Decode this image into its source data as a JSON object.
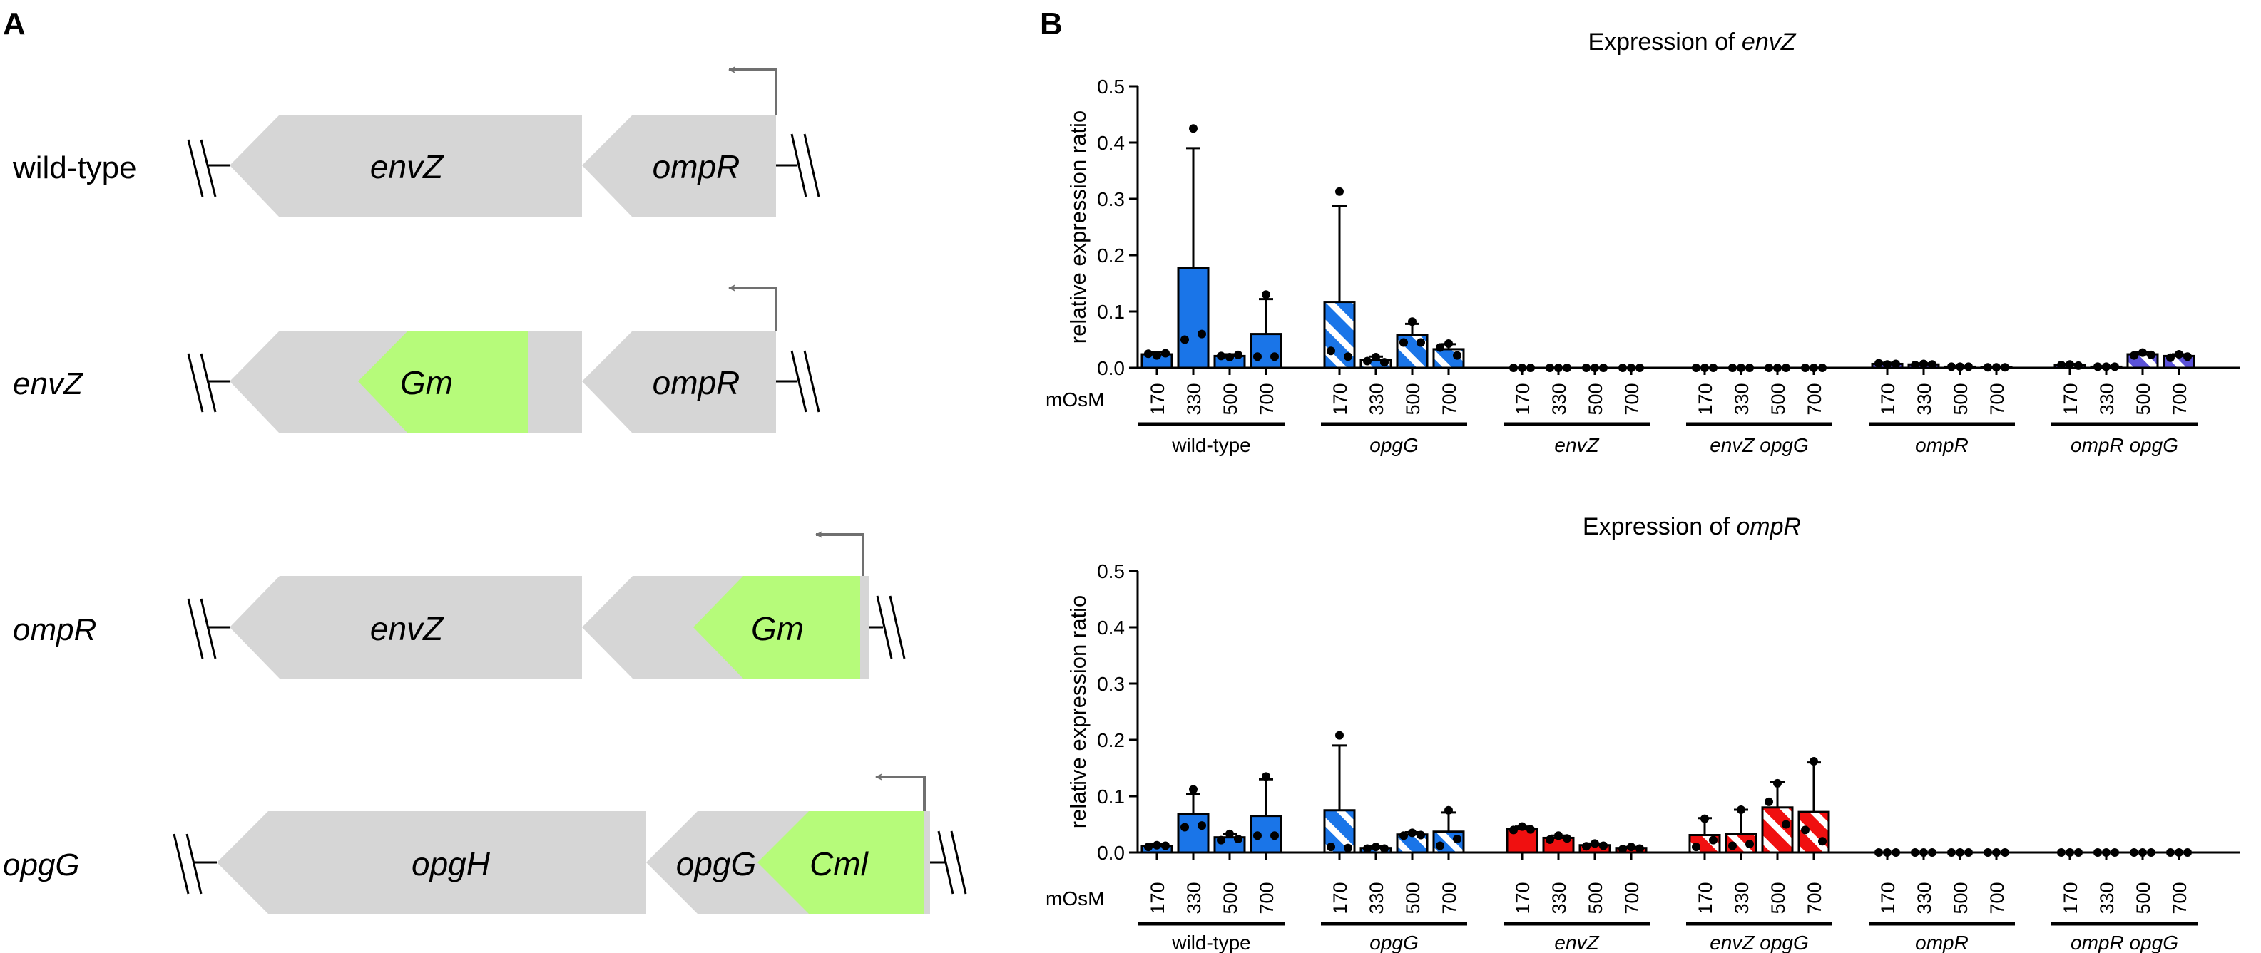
{
  "panel_a": {
    "label": "A",
    "rows": [
      {
        "label": "wild-type",
        "genes": [
          {
            "name": "envZ",
            "color": "gray"
          },
          {
            "name": "ompR",
            "color": "gray"
          }
        ]
      },
      {
        "label": "envZ",
        "genes": [
          {
            "name": "Gm",
            "color": "green"
          },
          {
            "name": "ompR",
            "color": "gray"
          }
        ]
      },
      {
        "label": "ompR",
        "genes": [
          {
            "name": "envZ",
            "color": "gray"
          },
          {
            "name": "Gm",
            "color": "green"
          }
        ]
      },
      {
        "label": "opgG",
        "genes": [
          {
            "name": "opgH",
            "color": "gray"
          },
          {
            "name": "opgG",
            "color": "gray"
          },
          {
            "name": "Cml",
            "color": "green"
          }
        ]
      }
    ]
  },
  "panel_b": {
    "label": "B"
  },
  "colors": {
    "gene_gray": "#d6d6d6",
    "gene_green": "#b6fb7a",
    "blue": "#1a75e8",
    "red": "#f01010",
    "purple": "#5b52d9",
    "black": "#000000"
  },
  "chart_data": [
    {
      "type": "bar",
      "title_prefix": "Expression of ",
      "title_gene": "envZ",
      "ylabel": "relative expression ratio",
      "ylim": [
        0,
        0.5
      ],
      "yticks": [
        "0.0",
        "0.1",
        "0.2",
        "0.3",
        "0.4",
        "0.5"
      ],
      "osm_label": "mOsM",
      "groups": [
        {
          "name": "wild-type",
          "italic": false,
          "bars": [
            {
              "osm": "170",
              "value": 0.024,
              "err": 0.004,
              "fill": "blue",
              "pattern": "solid",
              "points": [
                0.022,
                0.025,
                0.026
              ]
            },
            {
              "osm": "330",
              "value": 0.177,
              "err": 0.213,
              "fill": "blue",
              "pattern": "solid",
              "points": [
                0.425,
                0.05,
                0.06
              ]
            },
            {
              "osm": "500",
              "value": 0.021,
              "err": 0.003,
              "fill": "blue",
              "pattern": "solid",
              "points": [
                0.019,
                0.021,
                0.023
              ]
            },
            {
              "osm": "700",
              "value": 0.06,
              "err": 0.062,
              "fill": "blue",
              "pattern": "solid",
              "points": [
                0.13,
                0.02,
                0.02
              ]
            }
          ]
        },
        {
          "name": "opgG",
          "italic": true,
          "bars": [
            {
              "osm": "170",
              "value": 0.117,
              "err": 0.17,
              "fill": "blue",
              "pattern": "striped",
              "points": [
                0.313,
                0.03,
                0.02
              ]
            },
            {
              "osm": "330",
              "value": 0.014,
              "err": 0.006,
              "fill": "blue",
              "pattern": "striped",
              "points": [
                0.019,
                0.012,
                0.01
              ]
            },
            {
              "osm": "500",
              "value": 0.058,
              "err": 0.02,
              "fill": "blue",
              "pattern": "striped",
              "points": [
                0.082,
                0.045,
                0.045
              ]
            },
            {
              "osm": "700",
              "value": 0.033,
              "err": 0.009,
              "fill": "blue",
              "pattern": "striped",
              "points": [
                0.043,
                0.036,
                0.022
              ]
            }
          ]
        },
        {
          "name": "envZ",
          "italic": true,
          "bars": [
            {
              "osm": "170",
              "value": 0,
              "err": 0,
              "fill": "red",
              "pattern": "solid",
              "points": [
                0,
                0,
                0
              ]
            },
            {
              "osm": "330",
              "value": 0,
              "err": 0,
              "fill": "red",
              "pattern": "solid",
              "points": [
                0,
                0,
                0
              ]
            },
            {
              "osm": "500",
              "value": 0,
              "err": 0,
              "fill": "red",
              "pattern": "solid",
              "points": [
                0,
                0,
                0
              ]
            },
            {
              "osm": "700",
              "value": 0,
              "err": 0,
              "fill": "red",
              "pattern": "solid",
              "points": [
                0,
                0,
                0
              ]
            }
          ]
        },
        {
          "name": "envZ opgG",
          "italic": true,
          "bars": [
            {
              "osm": "170",
              "value": 0,
              "err": 0,
              "fill": "red",
              "pattern": "striped",
              "points": [
                0,
                0,
                0
              ]
            },
            {
              "osm": "330",
              "value": 0,
              "err": 0,
              "fill": "red",
              "pattern": "striped",
              "points": [
                0,
                0,
                0
              ]
            },
            {
              "osm": "500",
              "value": 0,
              "err": 0,
              "fill": "red",
              "pattern": "striped",
              "points": [
                0,
                0,
                0
              ]
            },
            {
              "osm": "700",
              "value": 0,
              "err": 0,
              "fill": "red",
              "pattern": "striped",
              "points": [
                0,
                0,
                0
              ]
            }
          ]
        },
        {
          "name": "ompR",
          "italic": true,
          "bars": [
            {
              "osm": "170",
              "value": 0.007,
              "err": 0.002,
              "fill": "purple",
              "pattern": "solid",
              "points": [
                0.006,
                0.008,
                0.007
              ]
            },
            {
              "osm": "330",
              "value": 0.006,
              "err": 0.002,
              "fill": "purple",
              "pattern": "solid",
              "points": [
                0.007,
                0.005,
                0.006
              ]
            },
            {
              "osm": "500",
              "value": 0.002,
              "err": 0.001,
              "fill": "purple",
              "pattern": "solid",
              "points": [
                0.002,
                0.002,
                0.002
              ]
            },
            {
              "osm": "700",
              "value": 0.001,
              "err": 0.0005,
              "fill": "purple",
              "pattern": "solid",
              "points": [
                0.001,
                0.001,
                0.001
              ]
            }
          ]
        },
        {
          "name": "ompR opgG",
          "italic": true,
          "bars": [
            {
              "osm": "170",
              "value": 0.005,
              "err": 0.002,
              "fill": "purple",
              "pattern": "striped",
              "points": [
                0.006,
                0.005,
                0.004
              ]
            },
            {
              "osm": "330",
              "value": 0.002,
              "err": 0.001,
              "fill": "purple",
              "pattern": "striped",
              "points": [
                0.002,
                0.002,
                0.002
              ]
            },
            {
              "osm": "500",
              "value": 0.024,
              "err": 0.004,
              "fill": "purple",
              "pattern": "striped",
              "points": [
                0.027,
                0.022,
                0.023
              ]
            },
            {
              "osm": "700",
              "value": 0.021,
              "err": 0.003,
              "fill": "purple",
              "pattern": "striped",
              "points": [
                0.024,
                0.018,
                0.02
              ]
            }
          ]
        }
      ]
    },
    {
      "type": "bar",
      "title_prefix": "Expression of ",
      "title_gene": "ompR",
      "ylabel": "relative expression ratio",
      "ylim": [
        0,
        0.5
      ],
      "yticks": [
        "0.0",
        "0.1",
        "0.2",
        "0.3",
        "0.4",
        "0.5"
      ],
      "osm_label": "mOsM",
      "groups": [
        {
          "name": "wild-type",
          "italic": false,
          "bars": [
            {
              "osm": "170",
              "value": 0.012,
              "err": 0.003,
              "fill": "blue",
              "pattern": "solid",
              "points": [
                0.013,
                0.01,
                0.012
              ]
            },
            {
              "osm": "330",
              "value": 0.068,
              "err": 0.036,
              "fill": "blue",
              "pattern": "solid",
              "points": [
                0.112,
                0.045,
                0.048
              ]
            },
            {
              "osm": "500",
              "value": 0.027,
              "err": 0.006,
              "fill": "blue",
              "pattern": "solid",
              "points": [
                0.033,
                0.022,
                0.024
              ]
            },
            {
              "osm": "700",
              "value": 0.065,
              "err": 0.065,
              "fill": "blue",
              "pattern": "solid",
              "points": [
                0.135,
                0.03,
                0.03
              ]
            }
          ]
        },
        {
          "name": "opgG",
          "italic": true,
          "bars": [
            {
              "osm": "170",
              "value": 0.075,
              "err": 0.115,
              "fill": "blue",
              "pattern": "striped",
              "points": [
                0.208,
                0.01,
                0.008
              ]
            },
            {
              "osm": "330",
              "value": 0.008,
              "err": 0.003,
              "fill": "blue",
              "pattern": "striped",
              "points": [
                0.01,
                0.007,
                0.007
              ]
            },
            {
              "osm": "500",
              "value": 0.032,
              "err": 0.004,
              "fill": "blue",
              "pattern": "striped",
              "points": [
                0.035,
                0.03,
                0.031
              ]
            },
            {
              "osm": "700",
              "value": 0.037,
              "err": 0.034,
              "fill": "blue",
              "pattern": "striped",
              "points": [
                0.075,
                0.012,
                0.024
              ]
            }
          ]
        },
        {
          "name": "envZ",
          "italic": true,
          "bars": [
            {
              "osm": "170",
              "value": 0.042,
              "err": 0.004,
              "fill": "red",
              "pattern": "solid",
              "points": [
                0.046,
                0.04,
                0.041
              ]
            },
            {
              "osm": "330",
              "value": 0.026,
              "err": 0.004,
              "fill": "red",
              "pattern": "solid",
              "points": [
                0.03,
                0.023,
                0.025
              ]
            },
            {
              "osm": "500",
              "value": 0.013,
              "err": 0.003,
              "fill": "red",
              "pattern": "solid",
              "points": [
                0.016,
                0.011,
                0.012
              ]
            },
            {
              "osm": "700",
              "value": 0.008,
              "err": 0.002,
              "fill": "red",
              "pattern": "solid",
              "points": [
                0.01,
                0.006,
                0.007
              ]
            }
          ]
        },
        {
          "name": "envZ opgG",
          "italic": true,
          "bars": [
            {
              "osm": "170",
              "value": 0.031,
              "err": 0.03,
              "fill": "red",
              "pattern": "striped",
              "points": [
                0.06,
                0.01,
                0.022
              ]
            },
            {
              "osm": "330",
              "value": 0.033,
              "err": 0.043,
              "fill": "red",
              "pattern": "striped",
              "points": [
                0.076,
                0.012,
                0.015
              ]
            },
            {
              "osm": "500",
              "value": 0.08,
              "err": 0.046,
              "fill": "red",
              "pattern": "striped",
              "points": [
                0.123,
                0.09,
                0.05
              ]
            },
            {
              "osm": "700",
              "value": 0.072,
              "err": 0.088,
              "fill": "red",
              "pattern": "striped",
              "points": [
                0.162,
                0.04,
                0.02
              ]
            }
          ]
        },
        {
          "name": "ompR",
          "italic": true,
          "bars": [
            {
              "osm": "170",
              "value": 0,
              "err": 0,
              "fill": "purple",
              "pattern": "solid",
              "points": [
                0,
                0,
                0
              ]
            },
            {
              "osm": "330",
              "value": 0,
              "err": 0,
              "fill": "purple",
              "pattern": "solid",
              "points": [
                0,
                0,
                0
              ]
            },
            {
              "osm": "500",
              "value": 0,
              "err": 0,
              "fill": "purple",
              "pattern": "solid",
              "points": [
                0,
                0,
                0
              ]
            },
            {
              "osm": "700",
              "value": 0,
              "err": 0,
              "fill": "purple",
              "pattern": "solid",
              "points": [
                0,
                0,
                0
              ]
            }
          ]
        },
        {
          "name": "ompR opgG",
          "italic": true,
          "bars": [
            {
              "osm": "170",
              "value": 0,
              "err": 0,
              "fill": "purple",
              "pattern": "striped",
              "points": [
                0,
                0,
                0
              ]
            },
            {
              "osm": "330",
              "value": 0,
              "err": 0,
              "fill": "purple",
              "pattern": "striped",
              "points": [
                0,
                0,
                0
              ]
            },
            {
              "osm": "500",
              "value": 0,
              "err": 0,
              "fill": "purple",
              "pattern": "striped",
              "points": [
                0,
                0,
                0
              ]
            },
            {
              "osm": "700",
              "value": 0,
              "err": 0,
              "fill": "purple",
              "pattern": "striped",
              "points": [
                0,
                0,
                0
              ]
            }
          ]
        }
      ]
    }
  ]
}
